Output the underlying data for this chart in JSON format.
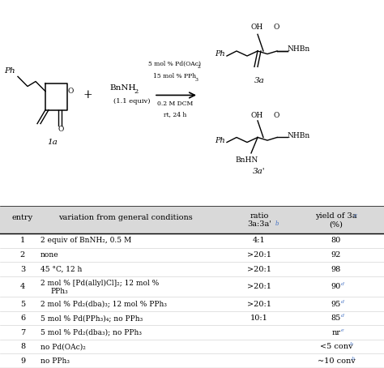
{
  "bg_color": "#ffffff",
  "text_color": "#000000",
  "superscript_color": "#4472c4",
  "table_header_bg": "#d9d9d9",
  "entries": [
    {
      "entry": "1",
      "condition": "2 equiv of BnNH₂, 0.5 M",
      "ratio": "4:1",
      "yield_main": "80",
      "yield_sup": ""
    },
    {
      "entry": "2",
      "condition": "none",
      "ratio": ">20:1",
      "yield_main": "92",
      "yield_sup": ""
    },
    {
      "entry": "3",
      "condition": "45 °C, 12 h",
      "ratio": ">20:1",
      "yield_main": "98",
      "yield_sup": ""
    },
    {
      "entry": "4",
      "condition": "2 mol % [Pd(allyl)Cl]₂; 12 mol %\nPPh₃",
      "ratio": ">20:1",
      "yield_main": "90",
      "yield_sup": "d"
    },
    {
      "entry": "5",
      "condition": "2 mol % Pd₂(dba)₃; 12 mol % PPh₃",
      "ratio": ">20:1",
      "yield_main": "95",
      "yield_sup": "d"
    },
    {
      "entry": "6",
      "condition": "5 mol % Pd(PPh₃)₄; no PPh₃",
      "ratio": "10:1",
      "yield_main": "85",
      "yield_sup": "d"
    },
    {
      "entry": "7",
      "condition": "5 mol % Pd₂(dba₃); no PPh₃",
      "ratio": "",
      "yield_main": "nr",
      "yield_sup": "e"
    },
    {
      "entry": "8",
      "condition": "no Pd(OAc)₂",
      "ratio": "",
      "yield_main": "<5 conv",
      "yield_sup": "b"
    },
    {
      "entry": "9",
      "condition": "no PPh₃",
      "ratio": "",
      "yield_main": "~10 conv",
      "yield_sup": "b"
    }
  ]
}
